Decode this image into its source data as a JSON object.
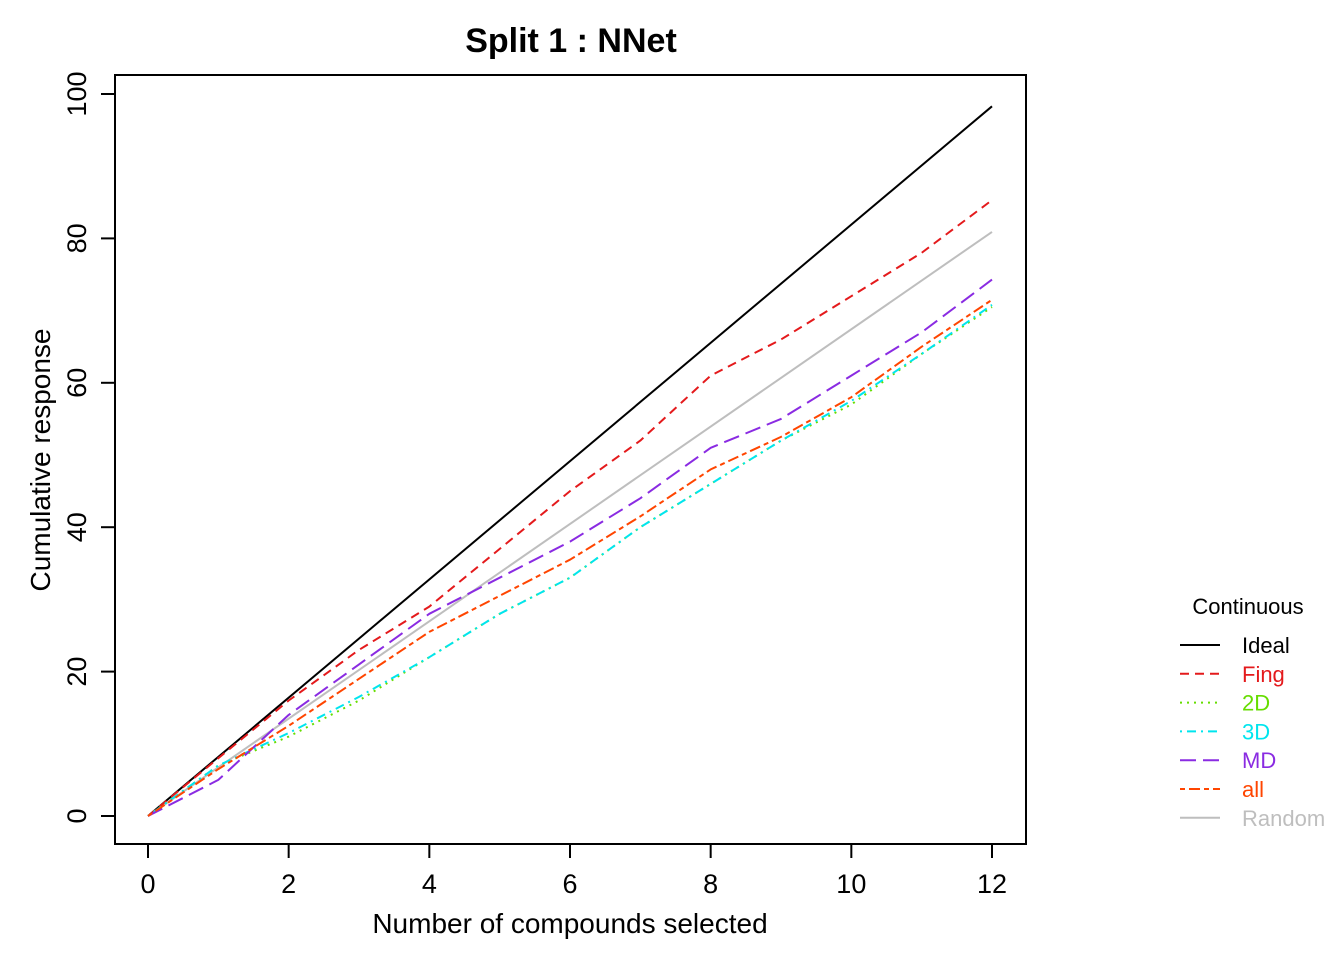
{
  "chart_data": {
    "type": "line",
    "title": "Split 1 : NNet",
    "xlabel": "Number of compounds selected",
    "ylabel": "Cumulative response",
    "xlim": [
      0,
      12
    ],
    "ylim": [
      0,
      100
    ],
    "xticks": [
      0,
      2,
      4,
      6,
      8,
      10,
      12
    ],
    "yticks": [
      0,
      20,
      40,
      60,
      80,
      100
    ],
    "grid": false,
    "legend": {
      "title": "Continuous",
      "placement": "right"
    },
    "series": [
      {
        "name": "Ideal",
        "color": "#000000",
        "dash": "solid",
        "x": [
          0,
          12
        ],
        "y": [
          0,
          98.3
        ]
      },
      {
        "name": "Fing",
        "color": "#e41a1c",
        "dash": "dashed",
        "x": [
          0,
          1,
          2,
          3,
          4,
          5,
          6,
          7,
          8,
          9,
          10,
          11,
          12
        ],
        "y": [
          0,
          8,
          16,
          23,
          29,
          37,
          45,
          52,
          61,
          66,
          72,
          78,
          85.3
        ]
      },
      {
        "name": "2D",
        "color": "#66dd00",
        "dash": "dotted",
        "x": [
          0,
          1,
          2,
          3,
          4,
          5,
          6,
          7,
          8,
          9,
          10,
          11,
          12
        ],
        "y": [
          0,
          7,
          11,
          16,
          22,
          28,
          33,
          40,
          46,
          52,
          57,
          64,
          70.5
        ]
      },
      {
        "name": "3D",
        "color": "#00e5ee",
        "dash": "dashdot",
        "x": [
          0,
          1,
          2,
          3,
          4,
          5,
          6,
          7,
          8,
          9,
          10,
          11,
          12
        ],
        "y": [
          0,
          7,
          11.5,
          16.5,
          22,
          28,
          33,
          40,
          46,
          52,
          57.5,
          64,
          70.8
        ]
      },
      {
        "name": "MD",
        "color": "#8a2be2",
        "dash": "longdash",
        "x": [
          0,
          1,
          2,
          3,
          4,
          5,
          6,
          7,
          8,
          9,
          10,
          11,
          12
        ],
        "y": [
          0,
          5,
          14,
          21,
          28,
          33,
          38,
          44,
          51,
          55,
          61,
          67,
          74.3
        ]
      },
      {
        "name": "all",
        "color": "#ff4500",
        "dash": "twodash",
        "x": [
          0,
          1,
          2,
          3,
          4,
          5,
          6,
          7,
          8,
          9,
          10,
          11,
          12
        ],
        "y": [
          0,
          6.5,
          12.5,
          19,
          25.5,
          30.5,
          35.5,
          41.5,
          48,
          52.5,
          58,
          65,
          71.5
        ]
      },
      {
        "name": "Random",
        "color": "#bebebe",
        "dash": "solid",
        "x": [
          0,
          12
        ],
        "y": [
          0,
          80.9
        ]
      }
    ]
  }
}
